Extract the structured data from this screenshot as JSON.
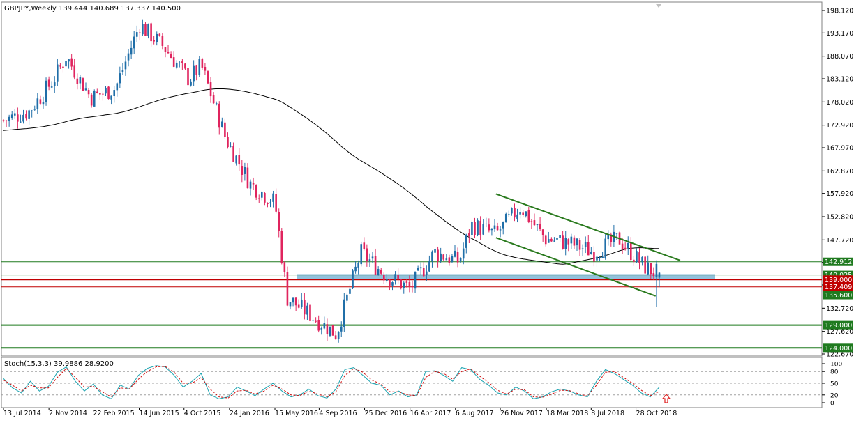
{
  "header": {
    "symbol": "GBPJPY,Weekly",
    "ohlc": "139.444 140.689 137.337 140.500"
  },
  "colors": {
    "background": "#ffffff",
    "bull_candle": "#1f6ea8",
    "bear_candle": "#e0245e",
    "moving_average": "#000000",
    "channel_lines": "#2a7a1e",
    "support_lines": "#1f7a1f",
    "resistance_lines": "#c00000",
    "zone_fill": "#7fb6d6",
    "stoch_main": "#1aa3b0",
    "stoch_signal": "#d01010",
    "arrow": "#e02020"
  },
  "chart_data": [
    {
      "type": "candlestick",
      "symbol": "GBPJPY",
      "timeframe": "Weekly",
      "title": "GBPJPY,Weekly",
      "last_ohlc": {
        "open": 139.444,
        "high": 140.689,
        "low": 137.337,
        "close": 140.5
      },
      "ylim": [
        122.67,
        198.12
      ],
      "price_axis_ticks": [
        "198.120",
        "193.170",
        "188.070",
        "183.120",
        "178.020",
        "172.920",
        "167.970",
        "162.870",
        "157.920",
        "152.820",
        "147.720",
        "142.770",
        "137.820",
        "132.720",
        "127.620",
        "122.670"
      ],
      "time_axis_labels": [
        "13 Jul 2014",
        "2 Nov 2014",
        "22 Feb 2015",
        "14 Jun 2015",
        "4 Oct 2015",
        "24 Jan 2016",
        "15 May 2016",
        "4 Sep 2016",
        "25 Dec 2016",
        "16 Apr 2017",
        "6 Aug 2017",
        "26 Nov 2017",
        "18 Mar 2018",
        "8 Jul 2018",
        "28 Oct 2018"
      ],
      "approx_close_path": [
        {
          "date": "2014-07",
          "close": 174
        },
        {
          "date": "2014-09",
          "close": 176
        },
        {
          "date": "2014-11",
          "close": 183
        },
        {
          "date": "2014-12",
          "close": 188
        },
        {
          "date": "2015-02",
          "close": 179
        },
        {
          "date": "2015-04",
          "close": 181
        },
        {
          "date": "2015-06",
          "close": 195
        },
        {
          "date": "2015-08",
          "close": 190
        },
        {
          "date": "2015-10",
          "close": 183
        },
        {
          "date": "2015-11",
          "close": 186
        },
        {
          "date": "2016-01",
          "close": 170
        },
        {
          "date": "2016-03",
          "close": 160
        },
        {
          "date": "2016-05",
          "close": 156
        },
        {
          "date": "2016-06",
          "close": 135
        },
        {
          "date": "2016-08",
          "close": 131
        },
        {
          "date": "2016-10",
          "close": 127
        },
        {
          "date": "2016-12",
          "close": 145
        },
        {
          "date": "2017-02",
          "close": 140
        },
        {
          "date": "2017-04",
          "close": 137
        },
        {
          "date": "2017-06",
          "close": 145
        },
        {
          "date": "2017-08",
          "close": 143
        },
        {
          "date": "2017-09",
          "close": 151
        },
        {
          "date": "2017-11",
          "close": 149
        },
        {
          "date": "2018-01",
          "close": 155
        },
        {
          "date": "2018-03",
          "close": 148
        },
        {
          "date": "2018-05",
          "close": 147
        },
        {
          "date": "2018-07",
          "close": 145
        },
        {
          "date": "2018-09",
          "close": 148
        },
        {
          "date": "2018-11",
          "close": 142
        },
        {
          "date": "2018-12",
          "close": 140.5
        }
      ],
      "horizontal_levels": [
        {
          "price": 142.912,
          "label": "142.912",
          "color": "green"
        },
        {
          "price": 140.025,
          "label": "140.025",
          "color": "green"
        },
        {
          "price": 139.0,
          "label": "139.000",
          "color": "red"
        },
        {
          "price": 137.409,
          "label": "137.409",
          "color": "red"
        },
        {
          "price": 135.6,
          "label": "135.600",
          "color": "green"
        },
        {
          "price": 129.0,
          "label": "129.000",
          "color": "green"
        },
        {
          "price": 124.0,
          "label": "124.000",
          "color": "green"
        }
      ],
      "highlight_zone": [
        138.9,
        140.2
      ],
      "channel": {
        "upper": [
          {
            "date": "2017-11",
            "price": 157.8
          },
          {
            "date": "2019-02",
            "price": 143.2
          }
        ],
        "lower": [
          {
            "date": "2017-11",
            "price": 148.2
          },
          {
            "date": "2018-12",
            "price": 135.4
          }
        ]
      },
      "moving_average": "long-period moving average"
    },
    {
      "type": "line",
      "title": "Stoch(15,3,3) 39.9886 28.9200",
      "indicator": "Stochastic",
      "params": [
        15,
        3,
        3
      ],
      "current_main": 39.9886,
      "current_signal": 28.92,
      "ylim": [
        0,
        100
      ],
      "levels": [
        20,
        50,
        80
      ],
      "axis_ticks": [
        "100",
        "80",
        "50",
        "20",
        "0"
      ],
      "series": [
        {
          "name": "main",
          "values": [
            62,
            38,
            25,
            55,
            30,
            42,
            78,
            92,
            55,
            30,
            48,
            20,
            10,
            45,
            35,
            70,
            88,
            95,
            92,
            70,
            40,
            55,
            75,
            20,
            10,
            15,
            40,
            30,
            18,
            35,
            50,
            30,
            15,
            20,
            35,
            18,
            12,
            35,
            85,
            90,
            70,
            50,
            45,
            20,
            30,
            15,
            20,
            80,
            82,
            70,
            55,
            90,
            85,
            60,
            45,
            25,
            20,
            40,
            30,
            10,
            15,
            28,
            35,
            30,
            20,
            15,
            55,
            85,
            75,
            60,
            45,
            25,
            15,
            40
          ]
        },
        {
          "name": "signal",
          "values": [
            58,
            45,
            30,
            45,
            38,
            38,
            65,
            88,
            65,
            40,
            42,
            28,
            15,
            38,
            35,
            60,
            80,
            92,
            93,
            78,
            50,
            50,
            65,
            35,
            15,
            12,
            30,
            32,
            22,
            30,
            45,
            35,
            20,
            18,
            30,
            22,
            15,
            28,
            70,
            88,
            78,
            58,
            48,
            28,
            28,
            20,
            18,
            65,
            80,
            75,
            60,
            80,
            87,
            68,
            52,
            32,
            22,
            35,
            33,
            15,
            14,
            22,
            32,
            31,
            23,
            17,
            45,
            78,
            80,
            65,
            50,
            32,
            18,
            29
          ]
        }
      ]
    }
  ]
}
